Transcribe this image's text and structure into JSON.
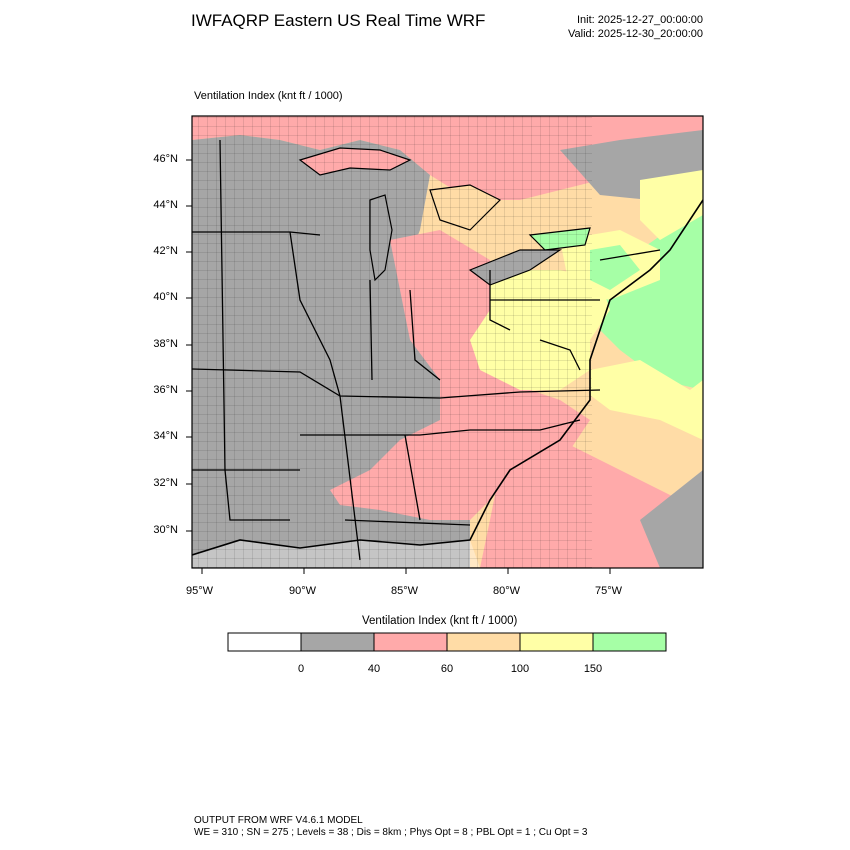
{
  "header": {
    "title": "IWFAQRP Eastern US Real Time WRF",
    "init": "Init: 2025-12-27_00:00:00",
    "valid": "Valid: 2025-12-30_20:00:00"
  },
  "plot": {
    "label": "Ventilation Index   (knt ft / 1000)",
    "lat_labels": [
      "46°N",
      "44°N",
      "42°N",
      "40°N",
      "38°N",
      "36°N",
      "34°N",
      "32°N",
      "30°N"
    ],
    "lon_labels": [
      "95°W",
      "90°W",
      "85°W",
      "80°W",
      "75°W"
    ]
  },
  "colorbar": {
    "title": "Ventilation Index  (knt ft / 1000)",
    "colors": [
      "#ffffff",
      "#a6a6a6",
      "#ffaaaa",
      "#ffdca6",
      "#ffffa6",
      "#a6ffa6"
    ],
    "labels": [
      "0",
      "40",
      "60",
      "100",
      "150"
    ]
  },
  "footer": {
    "line1": "OUTPUT FROM WRF V4.6.1 MODEL",
    "line2": "WE = 310 ; SN = 275 ; Levels = 38 ; Dis = 8km ; Phys Opt = 8 ; PBL Opt = 1 ; Cu Opt = 3"
  }
}
